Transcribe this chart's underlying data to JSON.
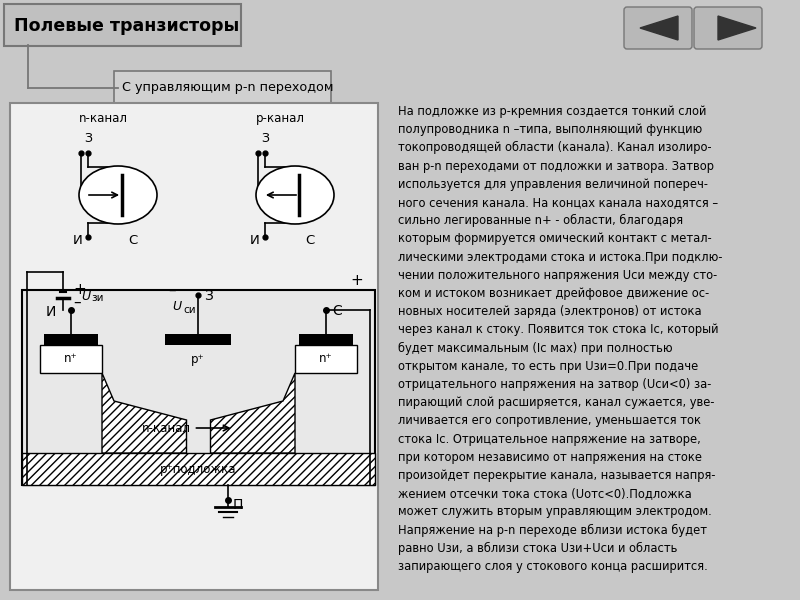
{
  "bg_color": "#c8c8c8",
  "title_text": "Полевые транзисторы",
  "subtitle_text": "С управляющим p-n переходом",
  "nav_arrow_color": "#333333",
  "nav_box_color": "#b0b0b0",
  "diagram_bg": "#f0f0f0",
  "diagram_border": "#888888",
  "lines_text": [
    "На подложке из p-кремния создается тонкий слой",
    "полупроводника n –типа, выполняющий функцию",
    "токопроводящей области (канала). Канал изолиро-",
    "ван p-n переходами от подложки и затвора. Затвор",
    "используется для управления величиной попереч-",
    "ного сечения канала. На концах канала находятся –",
    "сильно легированные n+ - области, благодаря",
    "которым формируется омический контакт с метал-",
    "лическими электродами стока и истока.При подклю-",
    "чении положительного напряжения Uси между сто-",
    "ком и истоком возникает дрейфовое движение ос-",
    "новных носителей заряда (электронов) от истока",
    "через канал к стоку. Появится ток стока Ic, который",
    "будет максимальным (Ic мах) при полностью",
    "открытом канале, то есть при Uзи=0.При подаче",
    "отрицательного напряжения на затвор (Uси<0) за-",
    "пирающий слой расширяется, канал сужается, уве-",
    "личивается его сопротивление, уменьшается ток",
    "стока Ic. Отрицательное напряжение на затворе,",
    "при котором независимо от напряжения на стоке",
    "произойдет перекрытие канала, называется напря-",
    "жением отсечки тока стока (Uотс<0).Подложка",
    "может служить вторым управляющим электродом.",
    "Напряжение на p-n переходе вблизи истока будет",
    "равно Uзи, а вблизи стока Uзи+Uси и область",
    "запирающего слоя у стокового конца расширится."
  ]
}
